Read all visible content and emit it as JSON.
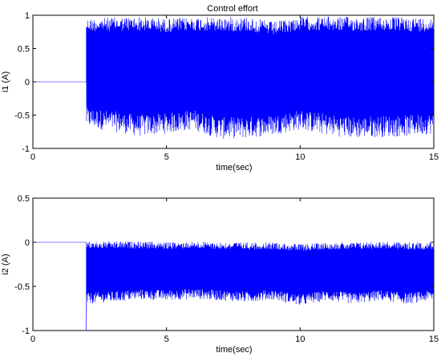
{
  "chart_data": [
    {
      "type": "line",
      "title": "Control effort",
      "xlabel": "time(sec)",
      "ylabel": "i1 (A)",
      "xlim": [
        0,
        15
      ],
      "ylim": [
        -1,
        1
      ],
      "xticks": [
        "0",
        "5",
        "10",
        "15"
      ],
      "yticks": [
        "1",
        "0.5",
        "0",
        "-0.5",
        "-1"
      ],
      "grid": false,
      "series": [
        {
          "color": "#0000ff",
          "description": "zero until t≈2 s, then high-frequency switching signal",
          "x": [
            0,
            2,
            2,
            15
          ],
          "y": [
            0,
            0,
            0.85,
            0.85
          ],
          "envelope": {
            "x": [
              2,
              3,
              4,
              5,
              6,
              7,
              8,
              9,
              10,
              11,
              12,
              13,
              14,
              15
            ],
            "upper": [
              0.95,
              0.97,
              0.98,
              0.95,
              0.97,
              0.97,
              0.98,
              0.9,
              0.98,
              0.98,
              0.98,
              0.98,
              0.97,
              0.96
            ],
            "lower": [
              -0.68,
              -0.75,
              -0.82,
              -0.78,
              -0.72,
              -0.86,
              -0.85,
              -0.8,
              -0.72,
              -0.8,
              -0.85,
              -0.83,
              -0.82,
              -0.78
            ]
          }
        }
      ]
    },
    {
      "type": "line",
      "title": "",
      "xlabel": "time(sec)",
      "ylabel": "i2 (A)",
      "xlim": [
        0,
        15
      ],
      "ylim": [
        -1,
        0.5
      ],
      "xticks": [
        "0",
        "5",
        "10",
        "15"
      ],
      "yticks": [
        "0.5",
        "0",
        "-0.5",
        "-1"
      ],
      "grid": false,
      "series": [
        {
          "color": "#0000ff",
          "description": "zero until t≈2 s, spike to -1 at t≈2 s, then high-frequency switching signal",
          "x": [
            0,
            2,
            2,
            2,
            15
          ],
          "y": [
            0,
            0,
            -1,
            -0.35,
            -0.35
          ],
          "envelope": {
            "x": [
              2,
              3,
              4,
              5,
              6,
              7,
              8,
              9,
              10,
              11,
              12,
              13,
              14,
              15
            ],
            "upper": [
              0.01,
              0.01,
              0.01,
              0.0,
              0.01,
              0.0,
              0.0,
              0.0,
              -0.02,
              0.0,
              0.0,
              0.01,
              0.0,
              0.0
            ],
            "lower": [
              -0.7,
              -0.68,
              -0.65,
              -0.66,
              -0.64,
              -0.66,
              -0.68,
              -0.65,
              -0.72,
              -0.66,
              -0.7,
              -0.66,
              -0.7,
              -0.66
            ]
          }
        }
      ]
    }
  ]
}
